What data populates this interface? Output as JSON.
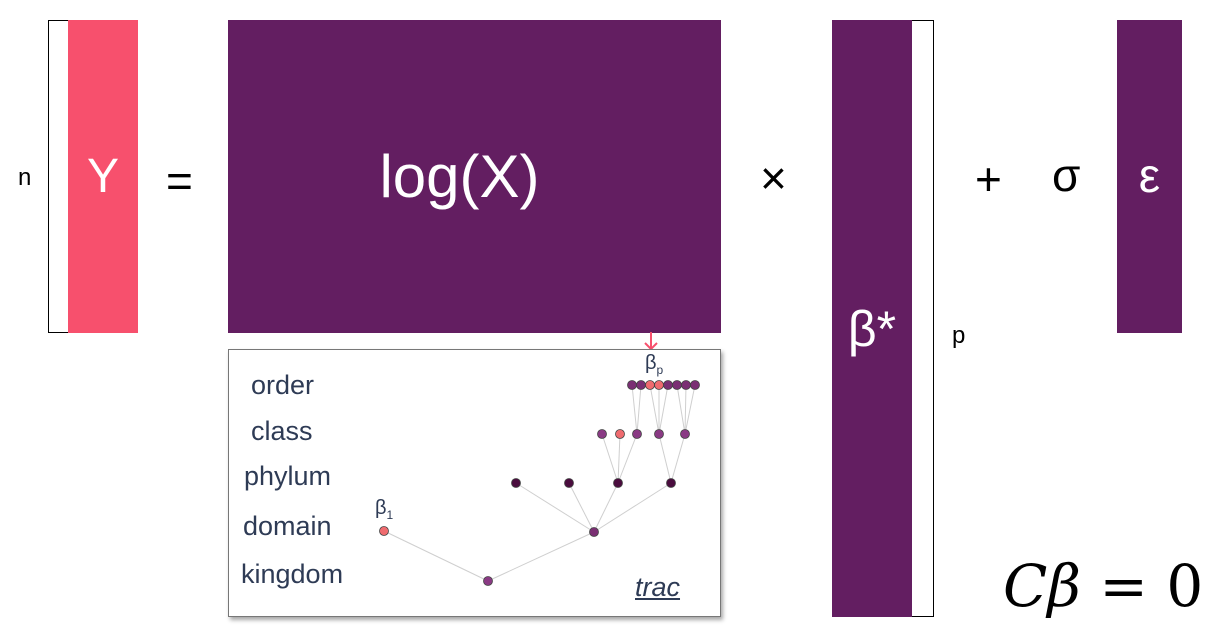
{
  "equation": {
    "y_label": "Y",
    "equals": "=",
    "logx_label": "log(X)",
    "times": "×",
    "beta_label": "β*",
    "plus": "+",
    "sigma": "σ",
    "eps_label": "ε",
    "n_label": "n",
    "p_label": "p"
  },
  "tree": {
    "levels": [
      "order",
      "class",
      "phylum",
      "domain",
      "kingdom"
    ],
    "beta1_label": "β",
    "beta1_sub": "1",
    "betap_label": "β",
    "betap_sub": "p",
    "trac_label": "trac"
  },
  "constraint": {
    "c": "C",
    "beta": "β",
    "rest": " = 0"
  },
  "colors": {
    "pink": "#f7506d",
    "purple": "#631e61",
    "text_blue": "#2e3b55",
    "node_highlight": "#ef6b6f"
  }
}
